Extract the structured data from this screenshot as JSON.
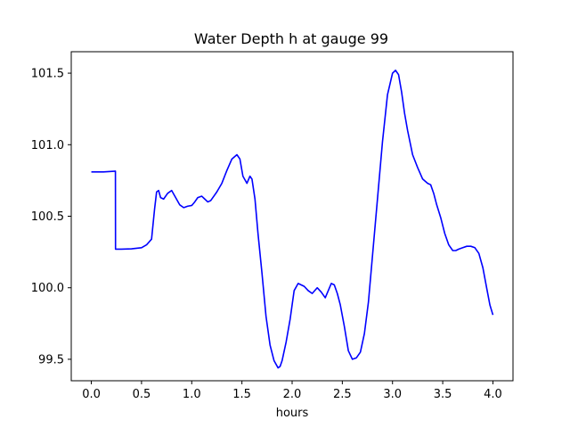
{
  "chart_data": {
    "type": "line",
    "title": "Water Depth h at gauge 99",
    "xlabel": "hours",
    "ylabel": "",
    "xlim": [
      -0.2,
      4.2
    ],
    "ylim": [
      99.35,
      101.65
    ],
    "xticks": [
      0.0,
      0.5,
      1.0,
      1.5,
      2.0,
      2.5,
      3.0,
      3.5,
      4.0
    ],
    "xtick_labels": [
      "0.0",
      "0.5",
      "1.0",
      "1.5",
      "2.0",
      "2.5",
      "3.0",
      "3.5",
      "4.0"
    ],
    "yticks": [
      99.5,
      100.0,
      100.5,
      101.0,
      101.5
    ],
    "ytick_labels": [
      "99.5",
      "100.0",
      "100.5",
      "101.0",
      "101.5"
    ],
    "grid": false,
    "series": [
      {
        "color": "#0000ff",
        "x": [
          0.0,
          0.12,
          0.24,
          0.241,
          0.3,
          0.4,
          0.5,
          0.55,
          0.6,
          0.63,
          0.65,
          0.67,
          0.69,
          0.72,
          0.76,
          0.8,
          0.84,
          0.88,
          0.92,
          0.96,
          1.0,
          1.03,
          1.06,
          1.1,
          1.13,
          1.16,
          1.19,
          1.22,
          1.25,
          1.3,
          1.35,
          1.4,
          1.45,
          1.48,
          1.51,
          1.55,
          1.58,
          1.6,
          1.63,
          1.66,
          1.7,
          1.74,
          1.78,
          1.82,
          1.86,
          1.88,
          1.9,
          1.94,
          1.98,
          2.02,
          2.06,
          2.09,
          2.12,
          2.16,
          2.2,
          2.25,
          2.29,
          2.33,
          2.36,
          2.39,
          2.42,
          2.45,
          2.48,
          2.52,
          2.56,
          2.6,
          2.64,
          2.68,
          2.72,
          2.76,
          2.8,
          2.85,
          2.9,
          2.95,
          3.0,
          3.03,
          3.06,
          3.09,
          3.12,
          3.15,
          3.2,
          3.25,
          3.3,
          3.35,
          3.38,
          3.41,
          3.44,
          3.48,
          3.52,
          3.56,
          3.6,
          3.63,
          3.66,
          3.7,
          3.74,
          3.78,
          3.82,
          3.86,
          3.9,
          3.94,
          3.97,
          4.0
        ],
        "y": [
          100.81,
          100.81,
          100.815,
          100.27,
          100.27,
          100.272,
          100.28,
          100.3,
          100.34,
          100.55,
          100.67,
          100.68,
          100.63,
          100.62,
          100.66,
          100.68,
          100.63,
          100.58,
          100.56,
          100.57,
          100.575,
          100.6,
          100.63,
          100.64,
          100.62,
          100.6,
          100.61,
          100.64,
          100.67,
          100.73,
          100.82,
          100.9,
          100.93,
          100.9,
          100.78,
          100.73,
          100.78,
          100.76,
          100.62,
          100.38,
          100.1,
          99.8,
          99.6,
          99.49,
          99.44,
          99.45,
          99.49,
          99.62,
          99.78,
          99.98,
          100.03,
          100.02,
          100.01,
          99.98,
          99.96,
          100.0,
          99.97,
          99.93,
          99.98,
          100.03,
          100.02,
          99.96,
          99.88,
          99.73,
          99.56,
          99.5,
          99.51,
          99.55,
          99.68,
          99.9,
          100.22,
          100.62,
          101.02,
          101.35,
          101.5,
          101.52,
          101.49,
          101.37,
          101.22,
          101.1,
          100.93,
          100.84,
          100.76,
          100.73,
          100.72,
          100.66,
          100.58,
          100.49,
          100.38,
          100.3,
          100.26,
          100.26,
          100.27,
          100.28,
          100.29,
          100.29,
          100.28,
          100.24,
          100.14,
          99.99,
          99.88,
          99.81
        ]
      }
    ]
  }
}
